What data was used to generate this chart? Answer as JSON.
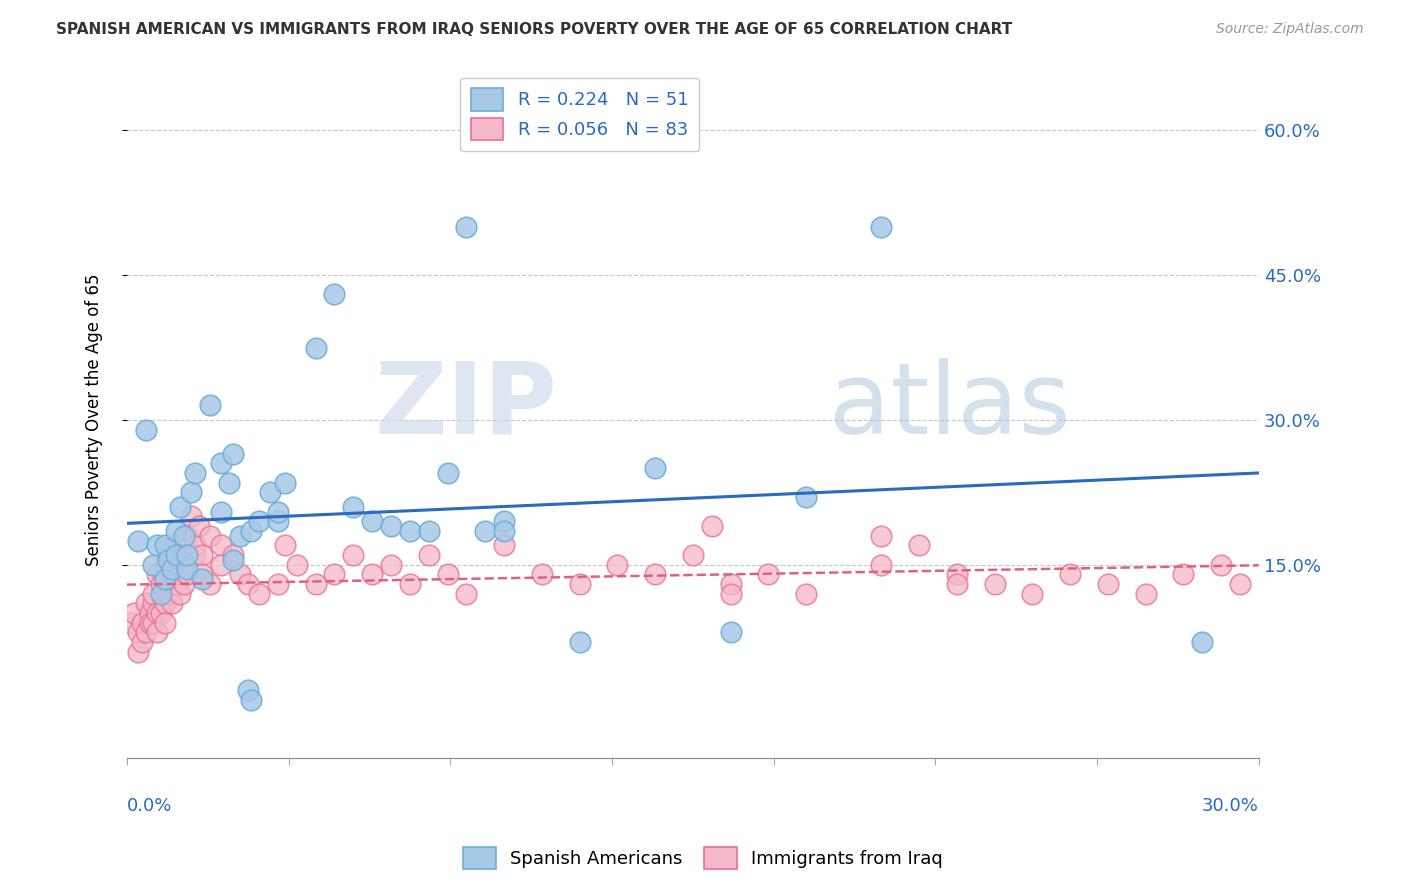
{
  "title": "SPANISH AMERICAN VS IMMIGRANTS FROM IRAQ SENIORS POVERTY OVER THE AGE OF 65 CORRELATION CHART",
  "source": "Source: ZipAtlas.com",
  "ylabel": "Seniors Poverty Over the Age of 65",
  "right_yticks": [
    "60.0%",
    "45.0%",
    "30.0%",
    "15.0%"
  ],
  "right_ytick_vals": [
    0.6,
    0.45,
    0.3,
    0.15
  ],
  "xmin": 0.0,
  "xmax": 0.3,
  "ymin": -0.05,
  "ymax": 0.65,
  "blue_color": "#a8c8e8",
  "blue_edge_color": "#6baed6",
  "pink_color": "#f4b8c8",
  "pink_edge_color": "#e87090",
  "blue_line_color": "#2a6abf",
  "pink_line_color": "#e06080",
  "legend_R_blue": "R = 0.224",
  "legend_N_blue": "N = 51",
  "legend_R_pink": "R = 0.056",
  "legend_N_pink": "N = 83",
  "watermark_zip": "ZIP",
  "watermark_atlas": "atlas",
  "blue_scatter_x": [
    0.003,
    0.005,
    0.007,
    0.008,
    0.009,
    0.01,
    0.01,
    0.011,
    0.012,
    0.013,
    0.013,
    0.014,
    0.015,
    0.016,
    0.016,
    0.017,
    0.018,
    0.02,
    0.022,
    0.025,
    0.025,
    0.027,
    0.028,
    0.028,
    0.03,
    0.032,
    0.033,
    0.033,
    0.035,
    0.038,
    0.04,
    0.04,
    0.042,
    0.05,
    0.055,
    0.06,
    0.065,
    0.07,
    0.075,
    0.08,
    0.085,
    0.09,
    0.095,
    0.1,
    0.1,
    0.12,
    0.14,
    0.16,
    0.18,
    0.2,
    0.285
  ],
  "blue_scatter_y": [
    0.175,
    0.29,
    0.15,
    0.17,
    0.12,
    0.135,
    0.17,
    0.155,
    0.145,
    0.16,
    0.185,
    0.21,
    0.18,
    0.145,
    0.16,
    0.225,
    0.245,
    0.135,
    0.315,
    0.205,
    0.255,
    0.235,
    0.155,
    0.265,
    0.18,
    0.02,
    0.01,
    0.185,
    0.195,
    0.225,
    0.195,
    0.205,
    0.235,
    0.375,
    0.43,
    0.21,
    0.195,
    0.19,
    0.185,
    0.185,
    0.245,
    0.5,
    0.185,
    0.195,
    0.185,
    0.07,
    0.25,
    0.08,
    0.22,
    0.5,
    0.07
  ],
  "pink_scatter_x": [
    0.001,
    0.002,
    0.003,
    0.003,
    0.004,
    0.004,
    0.005,
    0.005,
    0.006,
    0.006,
    0.007,
    0.007,
    0.007,
    0.008,
    0.008,
    0.008,
    0.009,
    0.009,
    0.01,
    0.01,
    0.01,
    0.011,
    0.011,
    0.012,
    0.012,
    0.013,
    0.013,
    0.014,
    0.014,
    0.015,
    0.015,
    0.016,
    0.016,
    0.017,
    0.018,
    0.018,
    0.019,
    0.02,
    0.02,
    0.022,
    0.022,
    0.025,
    0.025,
    0.028,
    0.03,
    0.032,
    0.035,
    0.04,
    0.042,
    0.045,
    0.05,
    0.055,
    0.06,
    0.065,
    0.07,
    0.075,
    0.08,
    0.085,
    0.09,
    0.1,
    0.11,
    0.12,
    0.13,
    0.14,
    0.15,
    0.16,
    0.17,
    0.18,
    0.2,
    0.21,
    0.22,
    0.23,
    0.24,
    0.25,
    0.26,
    0.27,
    0.28,
    0.29,
    0.295,
    0.2,
    0.155,
    0.22,
    0.16
  ],
  "pink_scatter_y": [
    0.09,
    0.1,
    0.08,
    0.06,
    0.09,
    0.07,
    0.08,
    0.11,
    0.1,
    0.09,
    0.09,
    0.11,
    0.12,
    0.1,
    0.14,
    0.08,
    0.1,
    0.13,
    0.11,
    0.09,
    0.15,
    0.16,
    0.12,
    0.14,
    0.11,
    0.13,
    0.17,
    0.15,
    0.12,
    0.16,
    0.13,
    0.14,
    0.18,
    0.2,
    0.16,
    0.17,
    0.19,
    0.16,
    0.14,
    0.13,
    0.18,
    0.17,
    0.15,
    0.16,
    0.14,
    0.13,
    0.12,
    0.13,
    0.17,
    0.15,
    0.13,
    0.14,
    0.16,
    0.14,
    0.15,
    0.13,
    0.16,
    0.14,
    0.12,
    0.17,
    0.14,
    0.13,
    0.15,
    0.14,
    0.16,
    0.13,
    0.14,
    0.12,
    0.15,
    0.17,
    0.14,
    0.13,
    0.12,
    0.14,
    0.13,
    0.12,
    0.14,
    0.15,
    0.13,
    0.18,
    0.19,
    0.13,
    0.12
  ]
}
